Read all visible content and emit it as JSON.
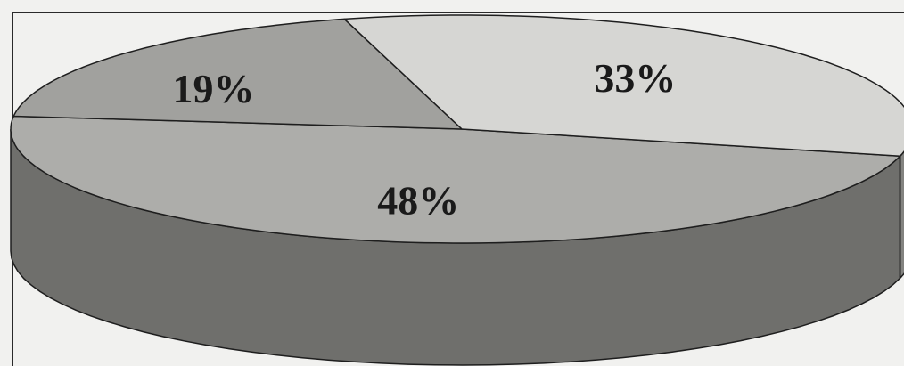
{
  "chart_data": {
    "type": "pie",
    "style": "3d",
    "slices": [
      {
        "label": "48%",
        "value": 48,
        "color": "#adadaa",
        "sideColor": "#6f6f6c"
      },
      {
        "label": "33%",
        "value": 33,
        "color": "#d6d6d3",
        "sideColor": "#838380"
      },
      {
        "label": "19%",
        "value": 19,
        "color": "#a1a19e",
        "sideColor": "#5f5f5c"
      }
    ],
    "legend": "none"
  }
}
